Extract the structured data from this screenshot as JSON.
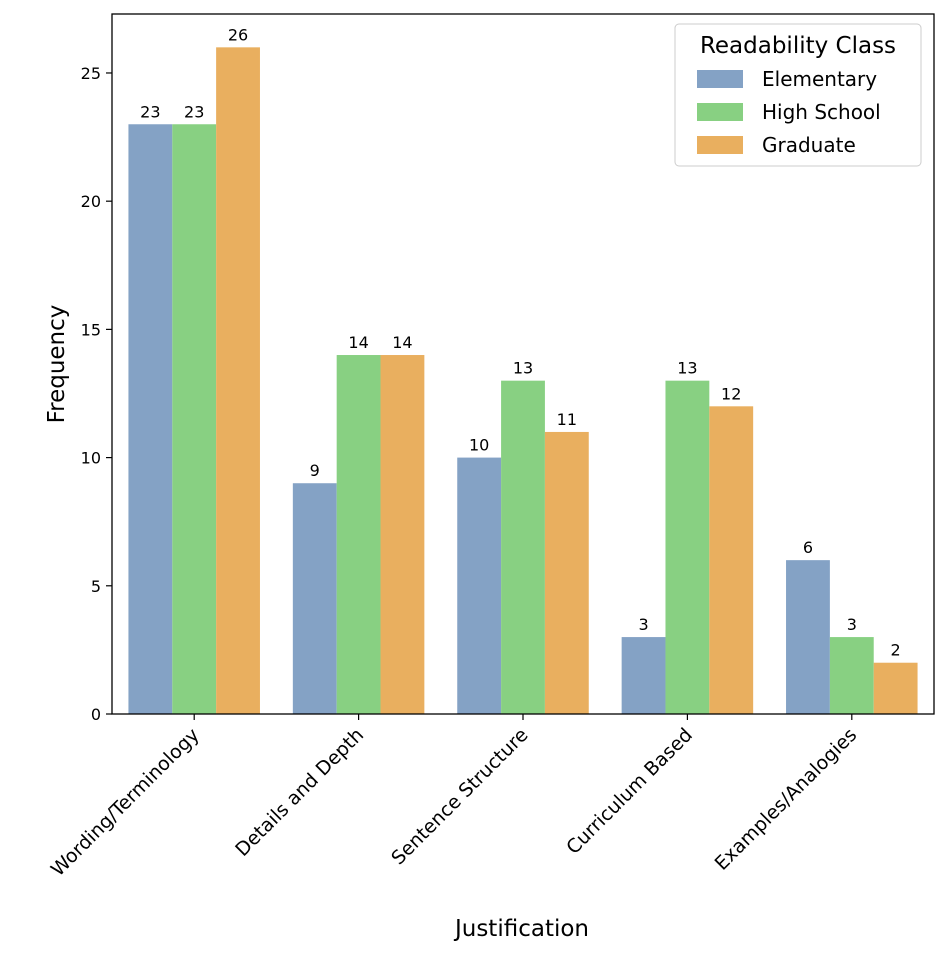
{
  "chart_data": {
    "type": "bar",
    "title": "",
    "xlabel": "Justification",
    "ylabel": "Frequency",
    "ylim": [
      0,
      27.3
    ],
    "yticks": [
      0,
      5,
      10,
      15,
      20,
      25
    ],
    "grid": false,
    "categories": [
      "Wording/Terminology",
      "Details and Depth",
      "Sentence Structure",
      "Curriculum Based",
      "Examples/Analogies"
    ],
    "series": [
      {
        "name": "Elementary",
        "color": "#84a2c5",
        "values": [
          23,
          9,
          10,
          3,
          6
        ]
      },
      {
        "name": "High School",
        "color": "#88d082",
        "values": [
          23,
          14,
          13,
          13,
          3
        ]
      },
      {
        "name": "Graduate",
        "color": "#e9af5f",
        "values": [
          26,
          14,
          11,
          12,
          2
        ]
      }
    ],
    "legend": {
      "title": "Readability Class",
      "placement": "top-right"
    }
  }
}
